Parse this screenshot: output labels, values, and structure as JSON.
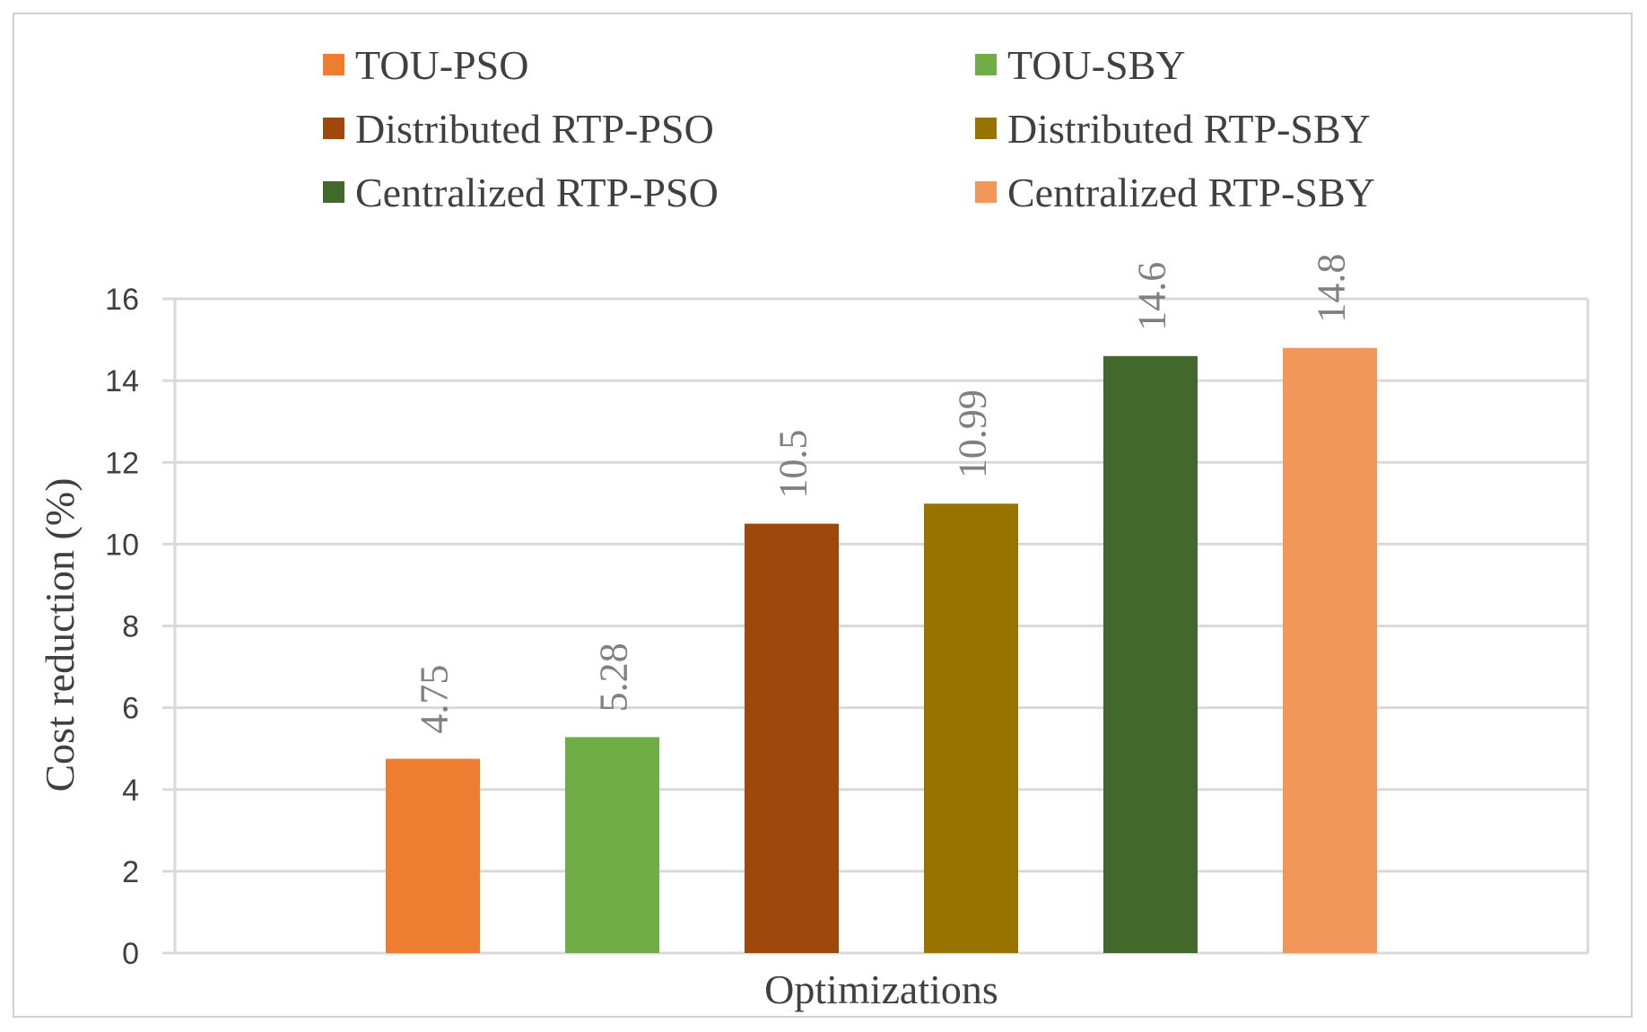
{
  "chart_data": {
    "type": "bar",
    "title": "",
    "xlabel": "Optimizations",
    "ylabel": "Cost reduction (%)",
    "ylim": [
      0,
      16
    ],
    "yticks": [
      0,
      2,
      4,
      6,
      8,
      10,
      12,
      14,
      16
    ],
    "grid": true,
    "legend_position": "top",
    "series": [
      {
        "name": "TOU-PSO",
        "value": 4.75,
        "label": "4.75",
        "color": "#ED7D31"
      },
      {
        "name": "TOU-SBY",
        "value": 5.28,
        "label": "5.28",
        "color": "#70AD47"
      },
      {
        "name": "Distributed RTP-PSO",
        "value": 10.5,
        "label": "10.5",
        "color": "#9E480E"
      },
      {
        "name": "Distributed RTP-SBY",
        "value": 10.99,
        "label": "10.99",
        "color": "#997300"
      },
      {
        "name": "Centralized RTP-PSO",
        "value": 14.6,
        "label": "14.6",
        "color": "#43682B"
      },
      {
        "name": "Centralized RTP-SBY",
        "value": 14.8,
        "label": "14.8",
        "color": "#F1975A"
      }
    ]
  }
}
